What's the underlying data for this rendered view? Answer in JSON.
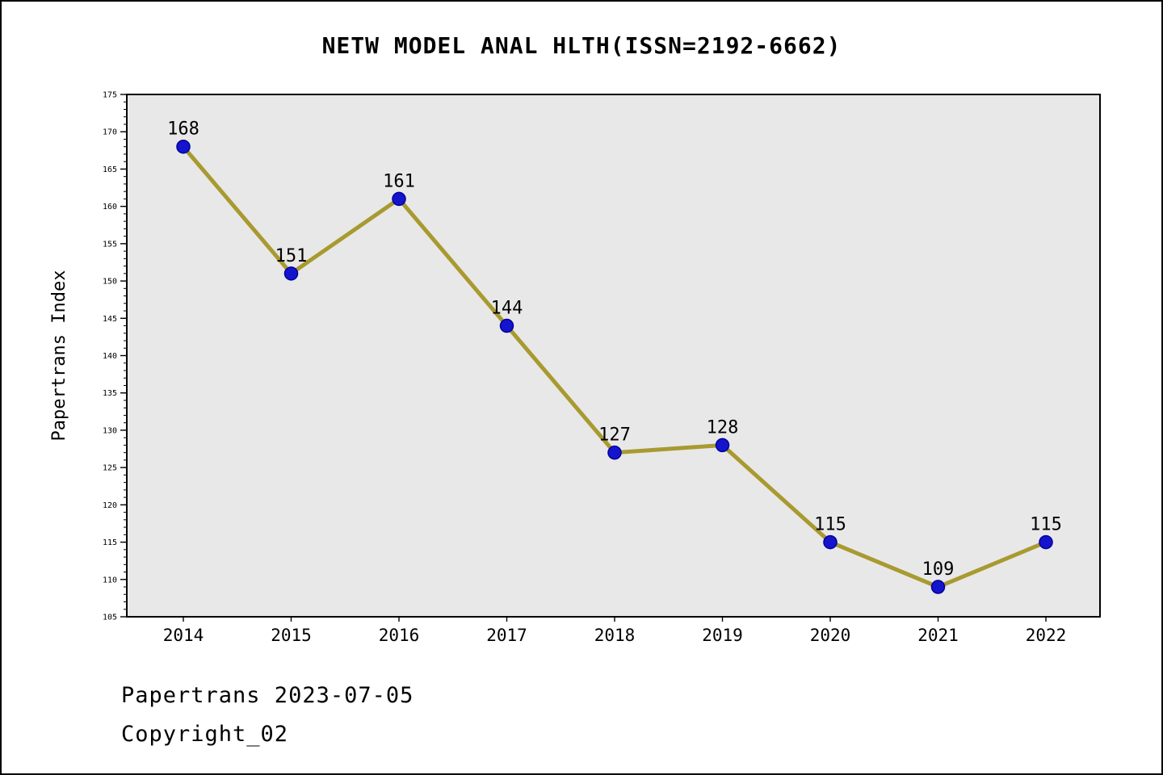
{
  "title": "NETW MODEL ANAL HLTH(ISSN=2192-6662)",
  "footer": {
    "line1": "Papertrans 2023-07-05",
    "line2": "Copyright_02"
  },
  "chart_data": {
    "type": "line",
    "title": "NETW MODEL ANAL HLTH(ISSN=2192-6662)",
    "categories": [
      "2014",
      "2015",
      "2016",
      "2017",
      "2018",
      "2019",
      "2020",
      "2021",
      "2022"
    ],
    "values": [
      168,
      151,
      161,
      144,
      127,
      128,
      115,
      109,
      115
    ],
    "xlabel": "",
    "ylabel": "Papertrans Index",
    "ylim": [
      105,
      175
    ],
    "ytick_step": 5,
    "ytick_minor_step": 1,
    "grid": false,
    "legend": "none",
    "colors": {
      "line": "#a89a30",
      "marker_fill": "#1414cc",
      "marker_edge": "#0000a0",
      "plot_background": "#e8e8e8",
      "axis": "#000000",
      "text": "#000000"
    }
  }
}
